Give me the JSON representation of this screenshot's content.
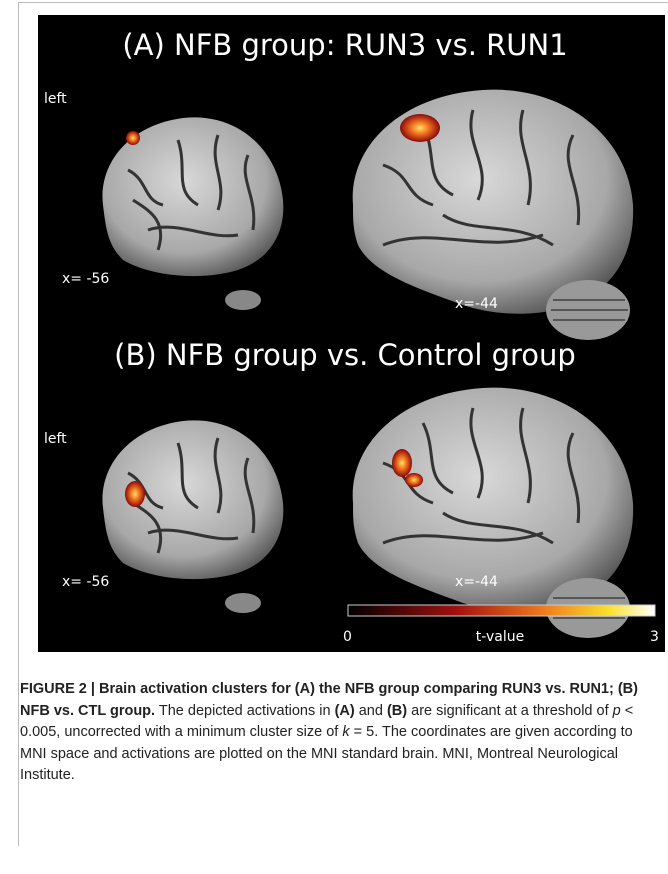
{
  "figure": {
    "panels": [
      {
        "title": "(A) NFB group: RUN3 vs. RUN1",
        "side_label": "left",
        "slice_labels": [
          "x= -56",
          "x=-44"
        ]
      },
      {
        "title": "(B) NFB group vs. Control group",
        "side_label": "left",
        "slice_labels": [
          "x= -56",
          "x=-44"
        ]
      }
    ],
    "colorbar": {
      "min_label": "0",
      "label": "t-value",
      "max_label": "3"
    }
  },
  "caption": {
    "heading": "FIGURE 2 | Brain activation clusters for (A) the NFB group comparing RUN3 vs. RUN1; (B) NFB vs. CTL group.",
    "parts": [
      "The depicted activations in ",
      "(A)",
      " and ",
      "(B)",
      " are significant at a threshold of ",
      "p",
      " < 0.005, uncorrected with a minimum cluster size of ",
      "k",
      " = 5. The coordinates are given according to MNI space and activations are plotted on the MNI standard brain. MNI, Montreal Neurological Institute."
    ]
  }
}
